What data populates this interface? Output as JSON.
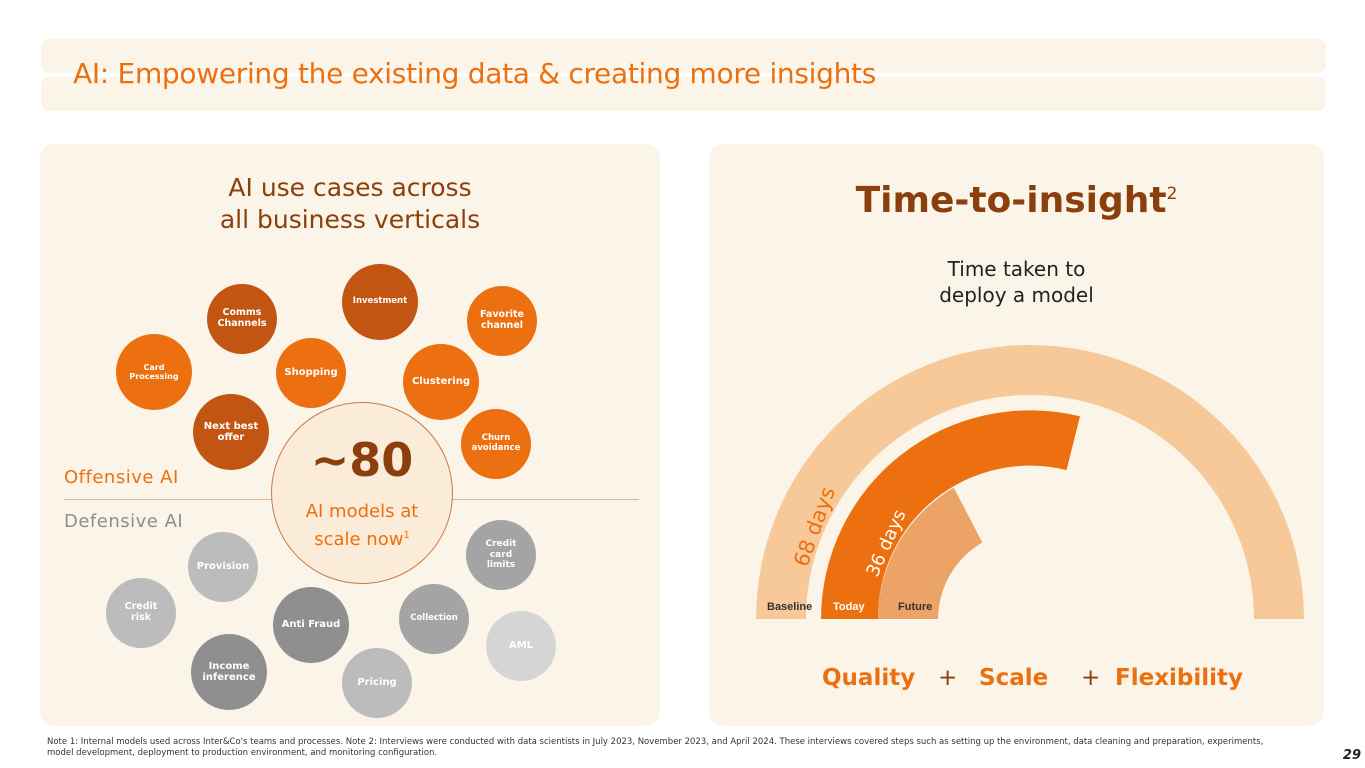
{
  "title": "AI: Empowering the existing data & creating more insights",
  "left_panel": {
    "heading_line1": "AI use cases across",
    "heading_line2": "all business verticals",
    "offensive_label": "Offensive AI",
    "defensive_label": "Defensive AI",
    "center": {
      "big": "~80",
      "line1": "AI models at",
      "line2": "scale now",
      "sup": "1"
    },
    "offensive_cases": [
      "Investment",
      "Comms\nChannels",
      "Favorite\nchannel",
      "Card\nProcessing",
      "Shopping",
      "Clustering",
      "Next best\noffer",
      "Churn\navoidance"
    ],
    "defensive_cases": [
      "Credit\ncard\nlimits",
      "Provision",
      "Credit\nrisk",
      "Anti Fraud",
      "Collection",
      "AML",
      "Income\ninference",
      "Pricing"
    ]
  },
  "right_panel": {
    "title": "Time-to-insight",
    "title_sup": "2",
    "subtitle_line1": "Time taken to",
    "subtitle_line2": "deploy a model",
    "baseline_label": "Baseline",
    "today_label": "Today",
    "future_label": "Future",
    "baseline_days": "68 days",
    "today_days": "36 days",
    "footer": {
      "quality": "Quality",
      "plus1": "+",
      "scale": "Scale",
      "plus2": "+",
      "flexibility": "Flexibility"
    }
  },
  "footnote": "Note 1: Internal models used across Inter&Co's teams and processes. Note 2: Interviews were conducted with data scientists in July 2023, November 2023, and April 2024. These interviews covered steps such as setting up the environment, data cleaning and preparation, experiments, model development, deployment to production environment, and monitoring configuration.",
  "page_number": "29",
  "colors": {
    "orange": "#ec7010",
    "dark_orange": "#c35512",
    "brown": "#8a3f0c",
    "panel_bg": "#fbf4e8",
    "arc_light": "#f7c998",
    "arc_future": "#eba366"
  }
}
